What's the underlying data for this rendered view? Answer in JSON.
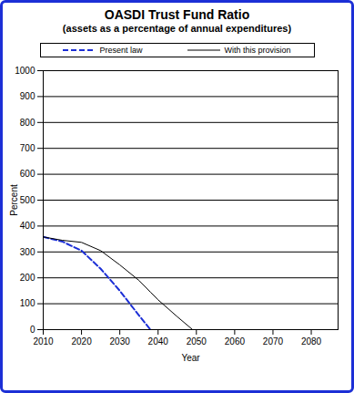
{
  "chart_data": {
    "type": "line",
    "title": "OASDI Trust Fund Ratio",
    "subtitle": "(assets as a percentage of annual expenditures)",
    "x_label": "Year",
    "y_label": "Percent",
    "x": [
      2010,
      2015,
      2020,
      2025,
      2030,
      2035,
      2038,
      2040,
      2045,
      2049
    ],
    "series": [
      {
        "name": "Present law",
        "color": "#1c2fd6",
        "line_style": "dashed",
        "values": [
          358,
          340,
          305,
          235,
          150,
          55,
          0,
          null,
          null,
          null
        ]
      },
      {
        "name": "With this provision",
        "color": "#000000",
        "line_style": "solid",
        "values": [
          358,
          345,
          337,
          305,
          250,
          190,
          145,
          115,
          50,
          0
        ]
      }
    ],
    "xlim": [
      2010,
      2087
    ],
    "xticks": [
      2010,
      2020,
      2030,
      2040,
      2050,
      2060,
      2070,
      2080
    ],
    "ylim": [
      0,
      1000
    ],
    "yticks": [
      0,
      100,
      200,
      300,
      400,
      500,
      600,
      700,
      800,
      900,
      1000
    ],
    "grid": true,
    "legend": "top"
  }
}
